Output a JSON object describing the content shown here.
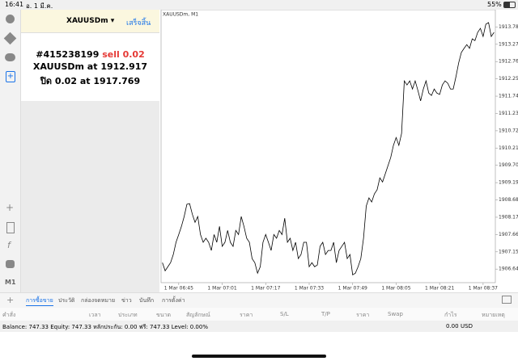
{
  "status_bar": {
    "time": "16:41",
    "date": "อ. 1 มี.ค.",
    "battery": "55%"
  },
  "sidebar": {
    "timeframe": "M1"
  },
  "order_panel": {
    "symbol": "XAUUSDm ▾",
    "done": "เสร็จสิ้น",
    "ticket": "#415238199",
    "side": "sell 0.02",
    "line2_text": "XAUUSDm at",
    "line2_price": "1912.917",
    "line3_text": "ปิด 0.02 at",
    "line3_price": "1917.769"
  },
  "chart_data": {
    "type": "line",
    "label": "XAUUSDm, M1",
    "color": "#000000",
    "categories": [
      null,
      null,
      null,
      null,
      null,
      null,
      "1 Mar 06:45",
      null,
      null,
      null,
      null,
      null,
      null,
      null,
      null,
      null,
      null,
      null,
      null,
      null,
      null,
      null,
      "1 Mar 07:01",
      null,
      null,
      null,
      null,
      null,
      null,
      null,
      null,
      null,
      null,
      null,
      null,
      null,
      null,
      null,
      "1 Mar 07:17",
      null,
      null,
      null,
      null,
      null,
      null,
      null,
      null,
      null,
      null,
      null,
      null,
      null,
      null,
      null,
      "1 Mar 07:33",
      null,
      null,
      null,
      null,
      null,
      null,
      null,
      null,
      null,
      null,
      null,
      null,
      null,
      null,
      null,
      "1 Mar 07:49",
      null,
      null,
      null,
      null,
      null,
      null,
      null,
      null,
      null,
      null,
      null,
      null,
      null,
      null,
      null,
      "1 Mar 08:05",
      null,
      null,
      null,
      null,
      null,
      null,
      null,
      null,
      null,
      null,
      null,
      null,
      null,
      null,
      null,
      "1 Mar 08:21",
      null,
      null,
      null,
      null,
      null,
      null,
      null,
      null,
      null,
      null,
      null,
      null,
      null,
      null,
      null,
      "1 Mar 08:37",
      null,
      null,
      null,
      null
    ],
    "values": [
      1906.83,
      1906.59,
      1906.71,
      1906.83,
      1907.07,
      1907.43,
      1907.66,
      1907.9,
      1908.19,
      1908.55,
      1908.57,
      1908.26,
      1908.02,
      1908.19,
      1907.66,
      1907.43,
      1907.55,
      1907.43,
      1907.19,
      1907.66,
      1907.43,
      1907.9,
      1907.31,
      1907.43,
      1907.78,
      1907.43,
      1907.31,
      1907.78,
      1907.66,
      1908.19,
      1907.9,
      1907.55,
      1907.43,
      1906.95,
      1906.83,
      1906.52,
      1906.71,
      1907.43,
      1907.66,
      1907.43,
      1907.19,
      1907.66,
      1907.55,
      1907.78,
      1907.66,
      1908.14,
      1907.43,
      1907.55,
      1907.19,
      1907.43,
      1906.95,
      1907.07,
      1907.43,
      1907.43,
      1906.71,
      1906.83,
      1906.71,
      1906.76,
      1907.31,
      1907.43,
      1907.07,
      1907.19,
      1907.19,
      1907.43,
      1906.83,
      1907.19,
      1907.31,
      1907.43,
      1906.95,
      1907.07,
      1906.47,
      1906.52,
      1906.71,
      1906.95,
      1907.55,
      1908.5,
      1908.74,
      1908.62,
      1908.86,
      1908.98,
      1909.33,
      1909.21,
      1909.45,
      1909.69,
      1909.93,
      1910.29,
      1910.52,
      1910.29,
      1910.64,
      1912.19,
      1912.07,
      1912.19,
      1911.95,
      1912.19,
      1911.91,
      1911.6,
      1911.95,
      1912.19,
      1911.83,
      1911.76,
      1911.95,
      1911.83,
      1911.79,
      1912.07,
      1912.19,
      1912.12,
      1911.95,
      1911.95,
      1912.31,
      1912.72,
      1913.03,
      1913.15,
      1913.26,
      1913.15,
      1913.43,
      1913.38,
      1913.62,
      1913.74,
      1913.5,
      1913.86,
      1913.91,
      1913.5,
      1913.62
    ],
    "ylim": [
      1906.24,
      1914.29
    ],
    "yticks": [
      {
        "value": 1906.64,
        "label": "1906.640"
      },
      {
        "value": 1907.15,
        "label": "1907.150"
      },
      {
        "value": 1907.66,
        "label": "1907.660"
      },
      {
        "value": 1908.17,
        "label": "1908.170"
      },
      {
        "value": 1908.68,
        "label": "1908.680"
      },
      {
        "value": 1909.19,
        "label": "1909.190"
      },
      {
        "value": 1909.7,
        "label": "1909.700"
      },
      {
        "value": 1910.21,
        "label": "1910.210"
      },
      {
        "value": 1910.72,
        "label": "1910.720"
      },
      {
        "value": 1911.23,
        "label": "1911.230"
      },
      {
        "value": 1911.74,
        "label": "1911.740"
      },
      {
        "value": 1912.25,
        "label": "1912.250"
      },
      {
        "value": 1912.76,
        "label": "1912.760"
      },
      {
        "value": 1913.27,
        "label": "1913.270"
      },
      {
        "value": 1913.78,
        "label": "1913.780"
      }
    ],
    "grid": false
  },
  "tabs": [
    "การซื้อขาย",
    "ประวัติ",
    "กล่องจดหมาย",
    "ข่าว",
    "บันทึก",
    "การตั้งค่า"
  ],
  "columns": [
    "คำสั่ง",
    "เวลา",
    "ประเภท",
    "ขนาด",
    "สัญลักษณ์",
    "ราคา",
    "S/L",
    "T/P",
    "ราคา",
    "Swap",
    "กำไร",
    "หมายเหตุ"
  ],
  "balance": {
    "summary": "Balance: 747.33 Equity: 747.33 หลักประกัน: 0.00 ฟรี: 747.33 Level: 0.00%",
    "profit": "0.00",
    "currency": "USD"
  }
}
